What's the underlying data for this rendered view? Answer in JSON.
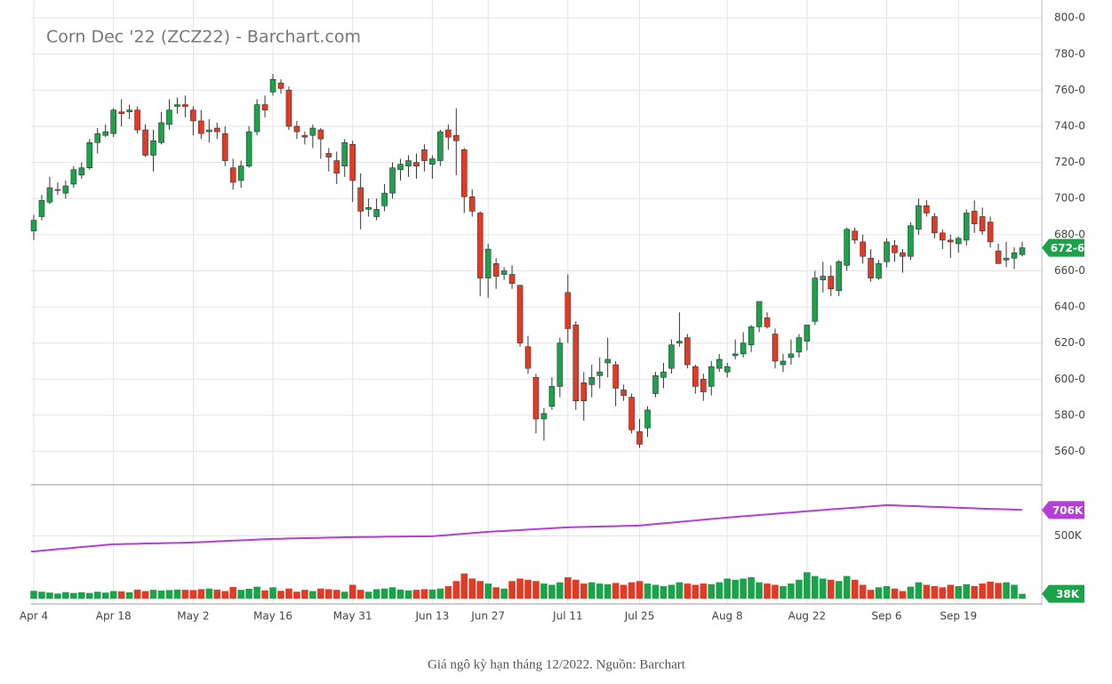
{
  "chart_data": {
    "type": "candlestick",
    "title": "Corn Dec '22 (ZCZ22) - Barchart.com",
    "categories": [
      "Apr 4",
      null,
      null,
      null,
      null,
      null,
      null,
      null,
      null,
      null,
      "Apr 18",
      null,
      null,
      null,
      null,
      null,
      null,
      null,
      null,
      null,
      "May 2",
      null,
      null,
      null,
      null,
      null,
      null,
      null,
      null,
      null,
      "May 16",
      null,
      null,
      null,
      null,
      null,
      null,
      null,
      null,
      null,
      "May 31",
      null,
      null,
      null,
      null,
      null,
      null,
      null,
      null,
      null,
      "Jun 13",
      null,
      null,
      null,
      null,
      null,
      null,
      "Jun 27",
      null,
      null,
      null,
      null,
      null,
      null,
      null,
      null,
      null,
      "Jul 11",
      null,
      null,
      null,
      null,
      null,
      null,
      null,
      null,
      "Jul 25",
      null,
      null,
      null,
      null,
      null,
      null,
      null,
      null,
      null,
      null,
      "Aug 8",
      null,
      null,
      null,
      null,
      null,
      null,
      null,
      null,
      null,
      "Aug 22",
      null,
      null,
      null,
      null,
      null,
      null,
      null,
      null,
      null,
      "Sep 6",
      null,
      null,
      null,
      null,
      null,
      null,
      null,
      null,
      "Sep 19",
      null,
      null,
      null,
      null,
      null,
      null,
      null,
      null
    ],
    "ohlc": [
      [
        682,
        691,
        677,
        688
      ],
      [
        690,
        702,
        688,
        699
      ],
      [
        698,
        712,
        697,
        706
      ],
      [
        705,
        709,
        702,
        705
      ],
      [
        703,
        710,
        700,
        707
      ],
      [
        708,
        718,
        706,
        716
      ],
      [
        713,
        720,
        711,
        717
      ],
      [
        717,
        733,
        716,
        731
      ],
      [
        731,
        739,
        725,
        736
      ],
      [
        735,
        741,
        734,
        737
      ],
      [
        736,
        750,
        734,
        749
      ],
      [
        748,
        755,
        740,
        747
      ],
      [
        748,
        752,
        744,
        749
      ],
      [
        749,
        751,
        736,
        738
      ],
      [
        738,
        741,
        723,
        724
      ],
      [
        724,
        738,
        715,
        732
      ],
      [
        731,
        748,
        730,
        742
      ],
      [
        741,
        755,
        738,
        749
      ],
      [
        751,
        756,
        747,
        752
      ],
      [
        752,
        757,
        745,
        751
      ],
      [
        749,
        751,
        735,
        743
      ],
      [
        743,
        749,
        733,
        736
      ],
      [
        737,
        744,
        731,
        738
      ],
      [
        739,
        742,
        733,
        737
      ],
      [
        736,
        740,
        718,
        721
      ],
      [
        717,
        722,
        705,
        709
      ],
      [
        710,
        721,
        706,
        718
      ],
      [
        718,
        740,
        717,
        737
      ],
      [
        737,
        755,
        735,
        752
      ],
      [
        752,
        757,
        745,
        749
      ],
      [
        759,
        769,
        757,
        766
      ],
      [
        764,
        766,
        758,
        761
      ],
      [
        760,
        762,
        738,
        740
      ],
      [
        740,
        743,
        733,
        737
      ],
      [
        735,
        737,
        730,
        734
      ],
      [
        735,
        741,
        728,
        739
      ],
      [
        738,
        739,
        722,
        733
      ],
      [
        725,
        728,
        715,
        723
      ],
      [
        721,
        726,
        708,
        714
      ],
      [
        718,
        733,
        712,
        731
      ],
      [
        730,
        732,
        698,
        710
      ],
      [
        706,
        714,
        683,
        693
      ],
      [
        694,
        700,
        690,
        695
      ],
      [
        690,
        700,
        688,
        694
      ],
      [
        696,
        708,
        693,
        703
      ],
      [
        703,
        720,
        700,
        717
      ],
      [
        716,
        722,
        710,
        719
      ],
      [
        718,
        724,
        712,
        721
      ],
      [
        720,
        725,
        711,
        718
      ],
      [
        727,
        730,
        715,
        721
      ],
      [
        719,
        724,
        711,
        722
      ],
      [
        721,
        738,
        718,
        737
      ],
      [
        738,
        741,
        727,
        734
      ],
      [
        735,
        750,
        713,
        732
      ],
      [
        727,
        728,
        692,
        701
      ],
      [
        701,
        705,
        690,
        693
      ],
      [
        692,
        693,
        646,
        656
      ],
      [
        656,
        675,
        645,
        672
      ],
      [
        664,
        667,
        650,
        657
      ],
      [
        658,
        662,
        655,
        660
      ],
      [
        658,
        663,
        650,
        653
      ],
      [
        652,
        652,
        618,
        620
      ],
      [
        618,
        624,
        603,
        606
      ],
      [
        601,
        603,
        570,
        578
      ],
      [
        578,
        584,
        566,
        581
      ],
      [
        585,
        601,
        583,
        596
      ],
      [
        596,
        623,
        590,
        620
      ],
      [
        648,
        658,
        620,
        628
      ],
      [
        630,
        632,
        583,
        588
      ],
      [
        598,
        604,
        577,
        588
      ],
      [
        597,
        608,
        590,
        601
      ],
      [
        602,
        612,
        595,
        604
      ],
      [
        609,
        623,
        601,
        611
      ],
      [
        608,
        610,
        585,
        595
      ],
      [
        594,
        597,
        588,
        591
      ],
      [
        590,
        592,
        570,
        572
      ],
      [
        571,
        578,
        562,
        564
      ],
      [
        573,
        585,
        568,
        583
      ],
      [
        592,
        604,
        590,
        602
      ],
      [
        601,
        609,
        595,
        604
      ],
      [
        606,
        622,
        603,
        619
      ],
      [
        620,
        637,
        618,
        621
      ],
      [
        623,
        625,
        606,
        608
      ],
      [
        607,
        608,
        592,
        596
      ],
      [
        600,
        603,
        588,
        593
      ],
      [
        596,
        610,
        591,
        607
      ],
      [
        606,
        614,
        604,
        611
      ],
      [
        604,
        609,
        601,
        607
      ],
      [
        613,
        622,
        611,
        614
      ],
      [
        614,
        626,
        612,
        620
      ],
      [
        619,
        630,
        615,
        629
      ],
      [
        629,
        643,
        626,
        643
      ],
      [
        634,
        637,
        628,
        629
      ],
      [
        625,
        628,
        606,
        610
      ],
      [
        608,
        614,
        604,
        610
      ],
      [
        612,
        622,
        608,
        614
      ],
      [
        615,
        625,
        612,
        623
      ],
      [
        621,
        630,
        616,
        630
      ],
      [
        632,
        660,
        630,
        656
      ],
      [
        655,
        665,
        648,
        657
      ],
      [
        657,
        663,
        646,
        650
      ],
      [
        649,
        666,
        646,
        665
      ],
      [
        663,
        684,
        660,
        683
      ],
      [
        682,
        684,
        675,
        677
      ],
      [
        676,
        680,
        664,
        668
      ],
      [
        667,
        672,
        654,
        656
      ],
      [
        656,
        666,
        655,
        664
      ],
      [
        665,
        678,
        662,
        676
      ],
      [
        674,
        677,
        665,
        670
      ],
      [
        670,
        672,
        659,
        668
      ],
      [
        668,
        687,
        666,
        685
      ],
      [
        683,
        700,
        680,
        696
      ],
      [
        696,
        699,
        690,
        692
      ],
      [
        690,
        692,
        678,
        681
      ],
      [
        681,
        683,
        672,
        677
      ],
      [
        677,
        680,
        667,
        676
      ],
      [
        675,
        679,
        670,
        678
      ],
      [
        677,
        694,
        674,
        692
      ],
      [
        693,
        699,
        681,
        686
      ],
      [
        690,
        695,
        680,
        682
      ],
      [
        687,
        690,
        673,
        676
      ],
      [
        671,
        675,
        664,
        664
      ],
      [
        666,
        676,
        662,
        667
      ],
      [
        667,
        673,
        661,
        670
      ],
      [
        669,
        676,
        668,
        672.75
      ]
    ],
    "last_label": "672-6",
    "up_color": "#1ba24b",
    "down_color": "#e23b25",
    "ylim": [
      545,
      805
    ],
    "yticks": [
      {
        "value": 560,
        "label": "560-0"
      },
      {
        "value": 580,
        "label": "580-0"
      },
      {
        "value": 600,
        "label": "600-0"
      },
      {
        "value": 620,
        "label": "620-0"
      },
      {
        "value": 640,
        "label": "640-0"
      },
      {
        "value": 660,
        "label": "660-0"
      },
      {
        "value": 680,
        "label": "680-0"
      },
      {
        "value": 700,
        "label": "700-0"
      },
      {
        "value": 720,
        "label": "720-0"
      },
      {
        "value": 740,
        "label": "740-0"
      },
      {
        "value": 760,
        "label": "760-0"
      },
      {
        "value": 780,
        "label": "780-0"
      },
      {
        "value": 800,
        "label": "800-0"
      }
    ],
    "grid": true,
    "volume": {
      "values": [
        62000,
        55000,
        48000,
        40000,
        52000,
        45000,
        50000,
        45000,
        55000,
        48000,
        60000,
        58000,
        50000,
        72000,
        60000,
        70000,
        65000,
        68000,
        72000,
        70000,
        68000,
        75000,
        80000,
        72000,
        60000,
        92000,
        70000,
        78000,
        95000,
        65000,
        90000,
        62000,
        80000,
        55000,
        70000,
        60000,
        80000,
        75000,
        70000,
        55000,
        110000,
        70000,
        55000,
        75000,
        80000,
        90000,
        72000,
        65000,
        70000,
        75000,
        72000,
        80000,
        100000,
        140000,
        200000,
        160000,
        140000,
        120000,
        90000,
        80000,
        140000,
        160000,
        150000,
        140000,
        120000,
        110000,
        130000,
        170000,
        150000,
        120000,
        130000,
        120000,
        115000,
        125000,
        110000,
        130000,
        140000,
        120000,
        110000,
        100000,
        110000,
        130000,
        120000,
        110000,
        120000,
        115000,
        130000,
        160000,
        150000,
        160000,
        170000,
        130000,
        120000,
        110000,
        100000,
        120000,
        150000,
        210000,
        180000,
        160000,
        150000,
        140000,
        180000,
        150000,
        110000,
        70000,
        90000,
        100000,
        80000,
        60000,
        95000,
        130000,
        110000,
        100000,
        90000,
        110000,
        100000,
        115000,
        100000,
        120000,
        135000,
        125000,
        130000,
        110000,
        38000
      ],
      "last_label": "38K",
      "tag_color": "#1ba24b"
    },
    "open_interest": {
      "color": "#b43fd6",
      "values": [
        376000,
        382000,
        388000,
        394000,
        399000,
        405000,
        411000,
        416000,
        422000,
        428000,
        433000,
        434000,
        436000,
        437000,
        439000,
        440000,
        441000,
        443000,
        444000,
        446000,
        447000,
        450000,
        453000,
        456000,
        459000,
        462000,
        464000,
        467000,
        470000,
        473000,
        476000,
        477000,
        479000,
        480000,
        482000,
        483000,
        484000,
        486000,
        487000,
        489000,
        490000,
        491000,
        491000,
        492000,
        493000,
        494000,
        494000,
        495000,
        496000,
        496000,
        497000,
        502000,
        507000,
        512000,
        517000,
        522000,
        527000,
        532000,
        536000,
        539000,
        543000,
        546000,
        550000,
        554000,
        557000,
        561000,
        564000,
        568000,
        570000,
        571000,
        573000,
        574000,
        576000,
        577000,
        579000,
        580000,
        582000,
        588000,
        594000,
        600000,
        605000,
        611000,
        617000,
        623000,
        629000,
        634000,
        640000,
        646000,
        651000,
        656000,
        661000,
        666000,
        671000,
        676000,
        681000,
        686000,
        691000,
        696000,
        701000,
        706000,
        711000,
        716000,
        720000,
        725000,
        730000,
        735000,
        740000,
        745000,
        743000,
        740000,
        738000,
        736000,
        733000,
        731000,
        729000,
        726000,
        724000,
        722000,
        719000,
        717000,
        715000,
        713000,
        711000,
        709000,
        706000
      ],
      "last_label": "706K"
    },
    "y2lim": [
      0,
      900000
    ],
    "y2ticks": [
      {
        "value": 500000,
        "label": "500K"
      }
    ]
  },
  "caption": "Giá ngô kỳ hạn tháng 12/2022. Nguồn: Barchart"
}
